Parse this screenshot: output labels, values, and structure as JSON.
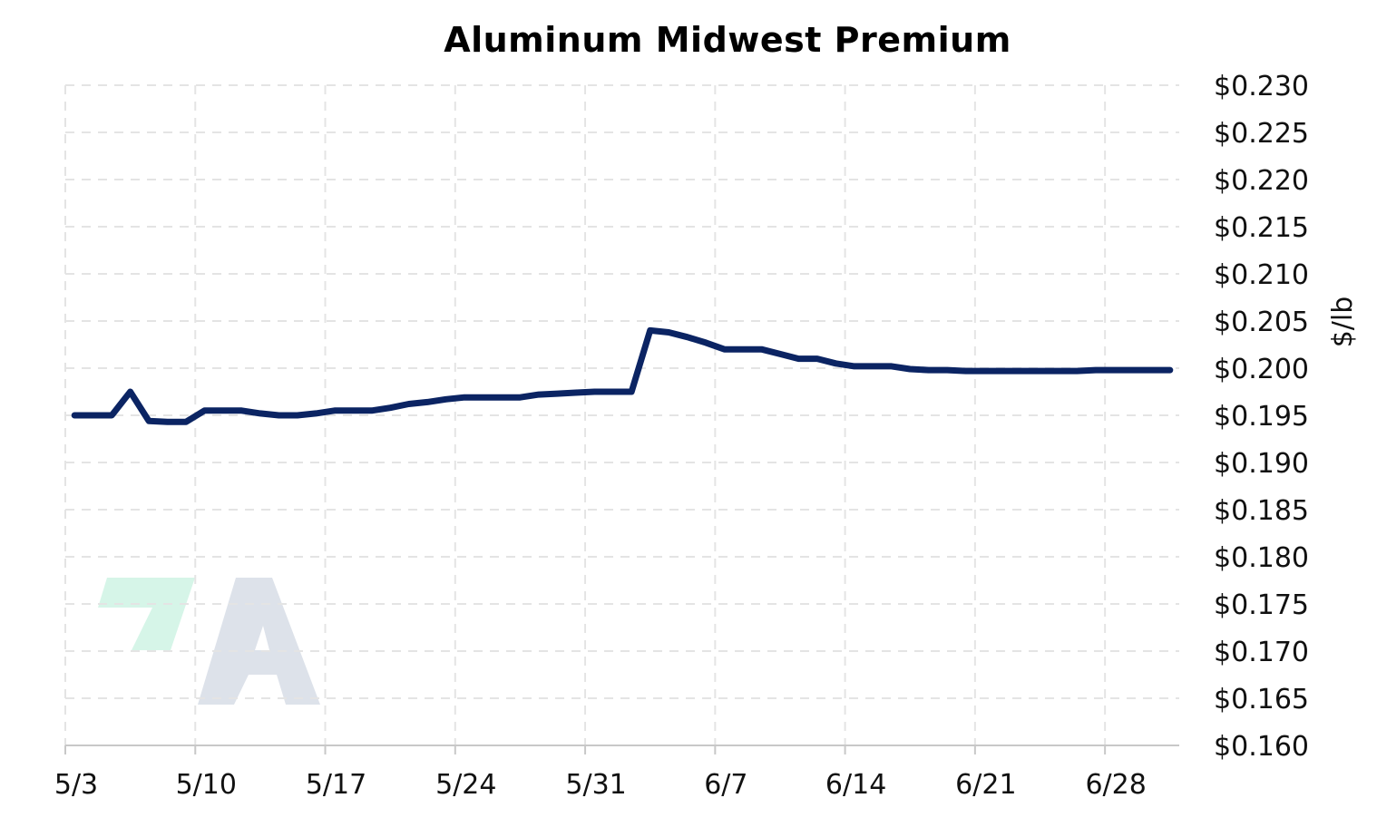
{
  "chart_data": {
    "type": "line",
    "title": "Aluminum Midwest Premium",
    "ylabel": "$/lb",
    "xlabel": "",
    "x_tick_labels": [
      "5/3",
      "5/10",
      "5/17",
      "5/24",
      "5/31",
      "6/7",
      "6/14",
      "6/21",
      "6/28"
    ],
    "y_tick_labels": [
      "$0.160",
      "$0.165",
      "$0.170",
      "$0.175",
      "$0.180",
      "$0.185",
      "$0.190",
      "$0.195",
      "$0.200",
      "$0.205",
      "$0.210",
      "$0.215",
      "$0.220",
      "$0.225",
      "$0.230"
    ],
    "ylim": [
      0.16,
      0.23
    ],
    "xlim_days": [
      0,
      60
    ],
    "y_axis_position": "right",
    "grid": true,
    "line_color": "#0b2463",
    "series": [
      {
        "x": [
          0.5,
          1.5,
          2.5,
          3.5,
          4.5,
          5.5,
          6.5,
          7.5,
          8.5,
          9.5,
          10.5,
          11.5,
          12.5,
          13.5,
          14.5,
          15.5,
          16.5,
          17.5,
          18.5,
          19.5,
          20.5,
          21.5,
          22.5,
          23.5,
          24.5,
          25.5,
          26.5,
          27.5,
          28.5,
          29.5,
          30.5,
          31.5,
          32.5,
          33.5,
          34.5,
          35.5,
          36.5,
          37.5,
          38.5,
          39.5,
          40.5,
          41.5,
          42.5,
          43.5,
          44.5,
          45.5,
          46.5,
          47.5,
          48.5,
          49.5,
          50.5,
          51.5,
          52.5,
          53.5,
          54.5,
          55.5,
          56.5,
          57.5,
          58.5,
          59.5
        ],
        "values": [
          0.195,
          0.195,
          0.195,
          0.1975,
          0.1944,
          0.1943,
          0.1943,
          0.1955,
          0.1955,
          0.1955,
          0.1952,
          0.195,
          0.195,
          0.1952,
          0.1955,
          0.1955,
          0.1955,
          0.1958,
          0.1962,
          0.1964,
          0.1967,
          0.1969,
          0.1969,
          0.1969,
          0.1969,
          0.1972,
          0.1973,
          0.1974,
          0.1975,
          0.1975,
          0.1975,
          0.204,
          0.2038,
          0.2033,
          0.2027,
          0.202,
          0.202,
          0.202,
          0.2015,
          0.201,
          0.201,
          0.2005,
          0.2002,
          0.2002,
          0.2002,
          0.1999,
          0.1998,
          0.1998,
          0.1997,
          0.1997,
          0.1997,
          0.1997,
          0.1997,
          0.1997,
          0.1997,
          0.1998,
          0.1998,
          0.1998,
          0.1998,
          0.1998
        ]
      }
    ]
  },
  "watermark": {
    "brand_green": "#d6f5e8",
    "brand_gray": "#dde2ea"
  }
}
